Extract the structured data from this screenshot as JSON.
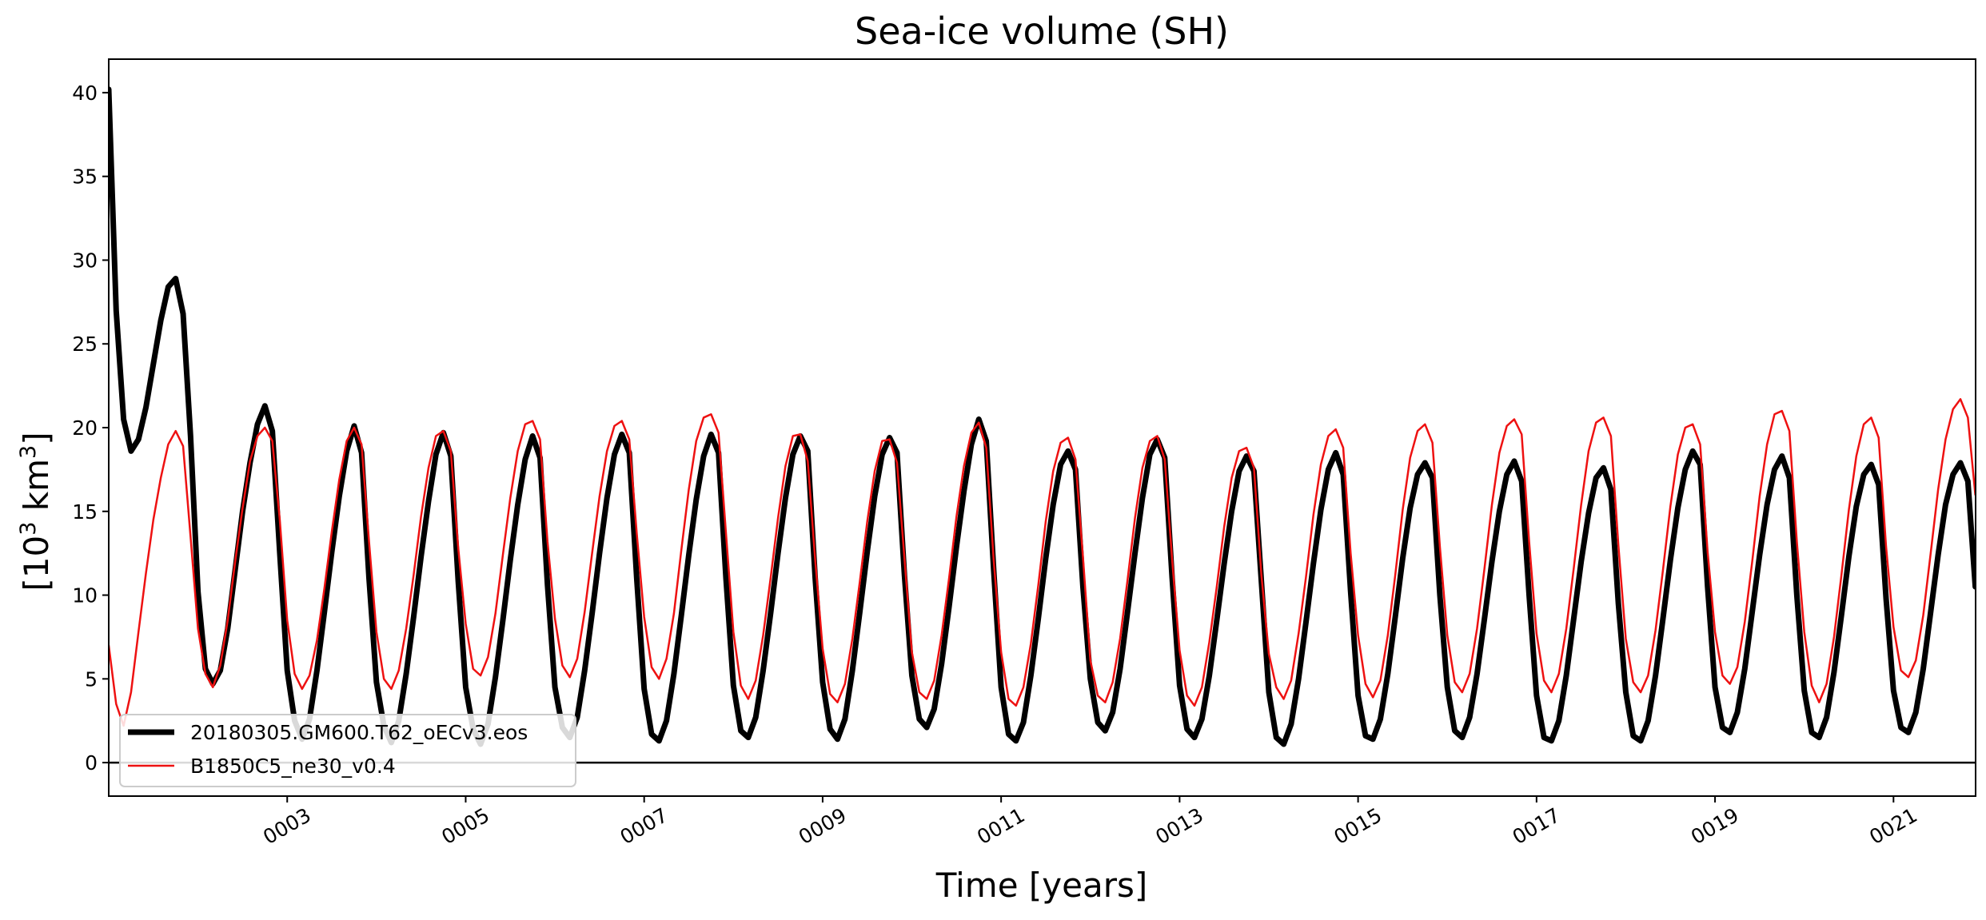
{
  "chart_data": {
    "type": "line",
    "title": "Sea-ice volume (SH)",
    "xlabel": "Time [years]",
    "ylabel": {
      "prefix": "[10",
      "sup1": "3",
      "middle": " km",
      "sup2": "3",
      "suffix": "]"
    },
    "xlim": [
      1.0,
      21.92
    ],
    "ylim": [
      -2.0,
      42.0
    ],
    "yticks": [
      0,
      5,
      10,
      15,
      20,
      25,
      30,
      35,
      40
    ],
    "xticks": [
      {
        "value": 3.0,
        "label": "0003"
      },
      {
        "value": 5.0,
        "label": "0005"
      },
      {
        "value": 7.0,
        "label": "0007"
      },
      {
        "value": 9.0,
        "label": "0009"
      },
      {
        "value": 11.0,
        "label": "0011"
      },
      {
        "value": 13.0,
        "label": "0013"
      },
      {
        "value": 15.0,
        "label": "0015"
      },
      {
        "value": 17.0,
        "label": "0017"
      },
      {
        "value": 19.0,
        "label": "0019"
      },
      {
        "value": 21.0,
        "label": "0021"
      }
    ],
    "zero_line": 0,
    "legend_position": "lower-left",
    "series": [
      {
        "name": "20180305.GM600.T62_oECv3.eos",
        "color": "#000000",
        "style": "thick",
        "x_start": 1.0,
        "x_step": 0.0833333,
        "values": [
          40.2,
          27.0,
          20.5,
          18.6,
          19.3,
          21.2,
          23.8,
          26.4,
          28.4,
          28.9,
          26.8,
          19.5,
          10.2,
          5.6,
          4.7,
          5.5,
          8.0,
          11.5,
          15.0,
          17.9,
          20.2,
          21.3,
          19.8,
          12.5,
          5.5,
          2.5,
          1.4,
          2.6,
          5.5,
          9.0,
          12.6,
          15.9,
          18.6,
          20.1,
          18.5,
          11.0,
          4.8,
          2.2,
          1.2,
          2.5,
          5.3,
          8.7,
          12.3,
          15.6,
          18.4,
          19.7,
          18.3,
          10.8,
          4.5,
          2.0,
          1.1,
          2.3,
          5.1,
          8.5,
          12.1,
          15.4,
          18.1,
          19.5,
          18.2,
          10.6,
          4.5,
          2.1,
          1.5,
          2.7,
          5.5,
          8.9,
          12.5,
          15.8,
          18.4,
          19.6,
          18.5,
          11.0,
          4.4,
          1.7,
          1.3,
          2.5,
          5.3,
          8.8,
          12.4,
          15.7,
          18.3,
          19.6,
          18.5,
          11.0,
          4.6,
          1.9,
          1.5,
          2.7,
          5.5,
          8.9,
          12.5,
          15.8,
          18.4,
          19.5,
          18.6,
          11.0,
          4.8,
          2.0,
          1.4,
          2.6,
          5.5,
          9.0,
          12.6,
          15.9,
          18.4,
          19.4,
          18.5,
          11.2,
          5.2,
          2.6,
          2.1,
          3.2,
          5.9,
          9.3,
          12.9,
          16.2,
          19.0,
          20.5,
          19.2,
          11.5,
          4.5,
          1.7,
          1.3,
          2.4,
          5.2,
          8.6,
          12.2,
          15.4,
          17.8,
          18.6,
          17.5,
          10.5,
          5.0,
          2.4,
          1.9,
          3.0,
          5.6,
          9.0,
          12.5,
          15.8,
          18.4,
          19.3,
          18.2,
          11.0,
          4.6,
          2.0,
          1.5,
          2.6,
          5.2,
          8.5,
          11.9,
          15.0,
          17.4,
          18.3,
          17.4,
          10.8,
          4.2,
          1.5,
          1.1,
          2.3,
          5.0,
          8.4,
          11.9,
          15.1,
          17.5,
          18.5,
          17.2,
          10.2,
          4.0,
          1.6,
          1.4,
          2.6,
          5.3,
          8.7,
          12.2,
          15.2,
          17.2,
          17.9,
          17.0,
          10.0,
          4.5,
          1.9,
          1.5,
          2.7,
          5.3,
          8.6,
          12.0,
          15.0,
          17.2,
          18.0,
          16.8,
          10.0,
          4.0,
          1.5,
          1.3,
          2.5,
          5.2,
          8.6,
          12.0,
          14.9,
          17.0,
          17.6,
          16.3,
          9.5,
          4.2,
          1.6,
          1.3,
          2.5,
          5.2,
          8.6,
          12.1,
          15.2,
          17.5,
          18.6,
          17.8,
          10.5,
          4.5,
          2.1,
          1.8,
          3.0,
          5.6,
          9.0,
          12.4,
          15.4,
          17.5,
          18.3,
          17.0,
          10.0,
          4.3,
          1.8,
          1.5,
          2.7,
          5.4,
          8.8,
          12.3,
          15.3,
          17.2,
          17.8,
          16.6,
          9.8,
          4.3,
          2.1,
          1.8,
          3.0,
          5.6,
          9.0,
          12.4,
          15.4,
          17.2,
          17.9,
          16.8,
          10.5
        ]
      },
      {
        "name": "B1850C5_ne30_v0.4",
        "color": "#ee1111",
        "style": "thin",
        "x_start": 1.0,
        "x_step": 0.0833333,
        "values": [
          7.0,
          3.5,
          2.2,
          4.2,
          7.8,
          11.3,
          14.5,
          17.0,
          19.0,
          19.8,
          18.9,
          13.5,
          8.0,
          5.3,
          4.5,
          5.8,
          8.5,
          12.0,
          15.2,
          18.0,
          19.5,
          20.0,
          19.2,
          14.5,
          8.5,
          5.3,
          4.4,
          5.2,
          7.3,
          10.4,
          13.8,
          16.9,
          19.2,
          20.0,
          19.0,
          13.2,
          7.8,
          5.0,
          4.4,
          5.5,
          8.0,
          11.2,
          14.7,
          17.6,
          19.5,
          19.8,
          18.6,
          12.8,
          8.3,
          5.6,
          5.2,
          6.3,
          8.9,
          12.4,
          15.8,
          18.6,
          20.2,
          20.4,
          19.3,
          13.2,
          8.6,
          5.8,
          5.1,
          6.2,
          9.0,
          12.5,
          15.9,
          18.6,
          20.1,
          20.4,
          19.3,
          13.7,
          8.7,
          5.7,
          5.0,
          6.2,
          8.9,
          12.7,
          16.3,
          19.2,
          20.6,
          20.8,
          19.7,
          13.7,
          7.8,
          4.6,
          3.8,
          4.9,
          7.6,
          11.0,
          14.6,
          17.7,
          19.5,
          19.6,
          18.0,
          12.1,
          6.8,
          4.1,
          3.6,
          4.7,
          7.4,
          10.8,
          14.4,
          17.4,
          19.2,
          19.3,
          17.9,
          12.2,
          6.6,
          4.2,
          3.8,
          4.9,
          7.6,
          11.0,
          14.7,
          17.7,
          19.7,
          20.3,
          18.8,
          12.1,
          6.6,
          3.8,
          3.4,
          4.5,
          7.1,
          10.6,
          14.4,
          17.4,
          19.1,
          19.4,
          18.1,
          12.3,
          6.1,
          4.0,
          3.6,
          4.8,
          7.4,
          10.9,
          14.6,
          17.6,
          19.2,
          19.5,
          18.1,
          12.1,
          6.7,
          4.0,
          3.4,
          4.5,
          7.2,
          10.5,
          14.1,
          17.0,
          18.6,
          18.8,
          17.6,
          11.2,
          6.5,
          4.5,
          3.8,
          4.9,
          7.7,
          11.1,
          14.8,
          17.8,
          19.5,
          19.9,
          18.8,
          12.5,
          7.6,
          4.7,
          3.9,
          4.9,
          7.6,
          11.2,
          15.1,
          18.2,
          19.8,
          20.2,
          19.1,
          12.9,
          7.6,
          4.8,
          4.2,
          5.3,
          8.0,
          11.6,
          15.4,
          18.5,
          20.1,
          20.5,
          19.6,
          13.2,
          7.7,
          4.9,
          4.2,
          5.3,
          8.0,
          11.6,
          15.4,
          18.6,
          20.3,
          20.6,
          19.5,
          13.0,
          7.4,
          4.8,
          4.2,
          5.2,
          7.9,
          11.5,
          15.3,
          18.4,
          20.0,
          20.2,
          19.0,
          12.6,
          7.8,
          5.2,
          4.7,
          5.7,
          8.4,
          12.0,
          15.9,
          19.0,
          20.8,
          21.0,
          19.8,
          13.2,
          7.8,
          4.6,
          3.6,
          4.7,
          7.5,
          11.2,
          15.1,
          18.3,
          20.2,
          20.6,
          19.4,
          12.9,
          8.1,
          5.5,
          5.1,
          6.1,
          8.8,
          12.5,
          16.3,
          19.3,
          21.1,
          21.7,
          20.6,
          16.0
        ]
      }
    ]
  }
}
